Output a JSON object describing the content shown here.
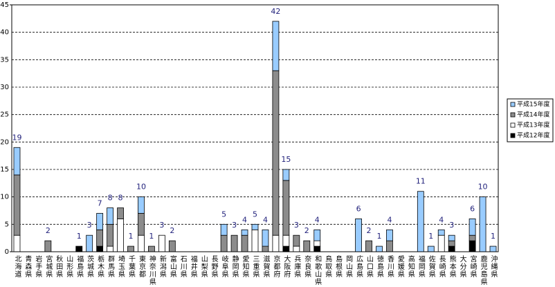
{
  "chart_data": {
    "type": "stacked_bar",
    "categories": [
      "北海道",
      "青森県",
      "岩手県",
      "宮城県",
      "秋田県",
      "山形県",
      "福島県",
      "茨城県",
      "栃木県",
      "群馬県",
      "埼玉県",
      "千葉県",
      "東京都",
      "神奈川県",
      "新潟県",
      "富山県",
      "石川県",
      "福井県",
      "山梨県",
      "長野県",
      "岐阜県",
      "静岡県",
      "愛知県",
      "三重県",
      "滋賀県",
      "京都府",
      "大阪府",
      "兵庫県",
      "奈良県",
      "和歌山県",
      "鳥取県",
      "島根県",
      "岡山県",
      "広島県",
      "山口県",
      "徳島県",
      "香川県",
      "愛媛県",
      "高知県",
      "福岡県",
      "佐賀県",
      "長崎県",
      "熊本県",
      "大分県",
      "宮崎県",
      "鹿児島県",
      "沖縄県"
    ],
    "series": [
      {
        "name": "平成12年度",
        "color": "#000000",
        "values": [
          0,
          0,
          0,
          0,
          0,
          0,
          1,
          0,
          1,
          0,
          0,
          0,
          0,
          0,
          0,
          0,
          0,
          0,
          0,
          0,
          0,
          0,
          0,
          0,
          0,
          0,
          1,
          0,
          0,
          1,
          0,
          0,
          0,
          0,
          0,
          0,
          0,
          0,
          0,
          0,
          0,
          0,
          1,
          0,
          2,
          0,
          0
        ]
      },
      {
        "name": "平成13年度",
        "color": "#ffffff",
        "values": [
          3,
          0,
          0,
          0,
          0,
          0,
          0,
          0,
          0,
          1,
          6,
          0,
          3,
          0,
          3,
          0,
          0,
          0,
          0,
          0,
          0,
          0,
          0,
          4,
          0,
          3,
          2,
          1,
          0,
          1,
          0,
          0,
          0,
          0,
          0,
          0,
          0,
          0,
          0,
          0,
          0,
          3,
          0,
          0,
          0,
          0,
          0
        ]
      },
      {
        "name": "平成14年度",
        "color": "#8c8c8c",
        "values": [
          11,
          0,
          0,
          2,
          0,
          0,
          0,
          0,
          3,
          4,
          2,
          1,
          4,
          1,
          0,
          2,
          0,
          0,
          0,
          0,
          3,
          3,
          3,
          0,
          1,
          30,
          10,
          2,
          2,
          0,
          0,
          0,
          0,
          0,
          2,
          0,
          2,
          0,
          0,
          0,
          0,
          0,
          1,
          0,
          1,
          0,
          0
        ]
      },
      {
        "name": "平成15年度",
        "color": "#99ccff",
        "values": [
          5,
          0,
          0,
          0,
          0,
          0,
          0,
          3,
          3,
          3,
          0,
          0,
          3,
          0,
          0,
          0,
          0,
          0,
          0,
          0,
          2,
          0,
          1,
          1,
          3,
          9,
          2,
          0,
          0,
          2,
          0,
          0,
          0,
          6,
          0,
          1,
          2,
          0,
          0,
          11,
          1,
          1,
          1,
          0,
          3,
          10,
          1
        ]
      }
    ],
    "totals": [
      19,
      null,
      null,
      2,
      null,
      null,
      1,
      3,
      7,
      8,
      8,
      1,
      10,
      1,
      3,
      2,
      null,
      null,
      null,
      null,
      5,
      3,
      4,
      5,
      4,
      42,
      15,
      3,
      2,
      4,
      null,
      null,
      null,
      6,
      2,
      1,
      4,
      null,
      null,
      11,
      1,
      4,
      3,
      null,
      6,
      10,
      1
    ],
    "ylim": [
      0,
      45
    ],
    "yticks": [
      0,
      5,
      10,
      15,
      20,
      25,
      30,
      35,
      40,
      45
    ],
    "grid": true
  }
}
